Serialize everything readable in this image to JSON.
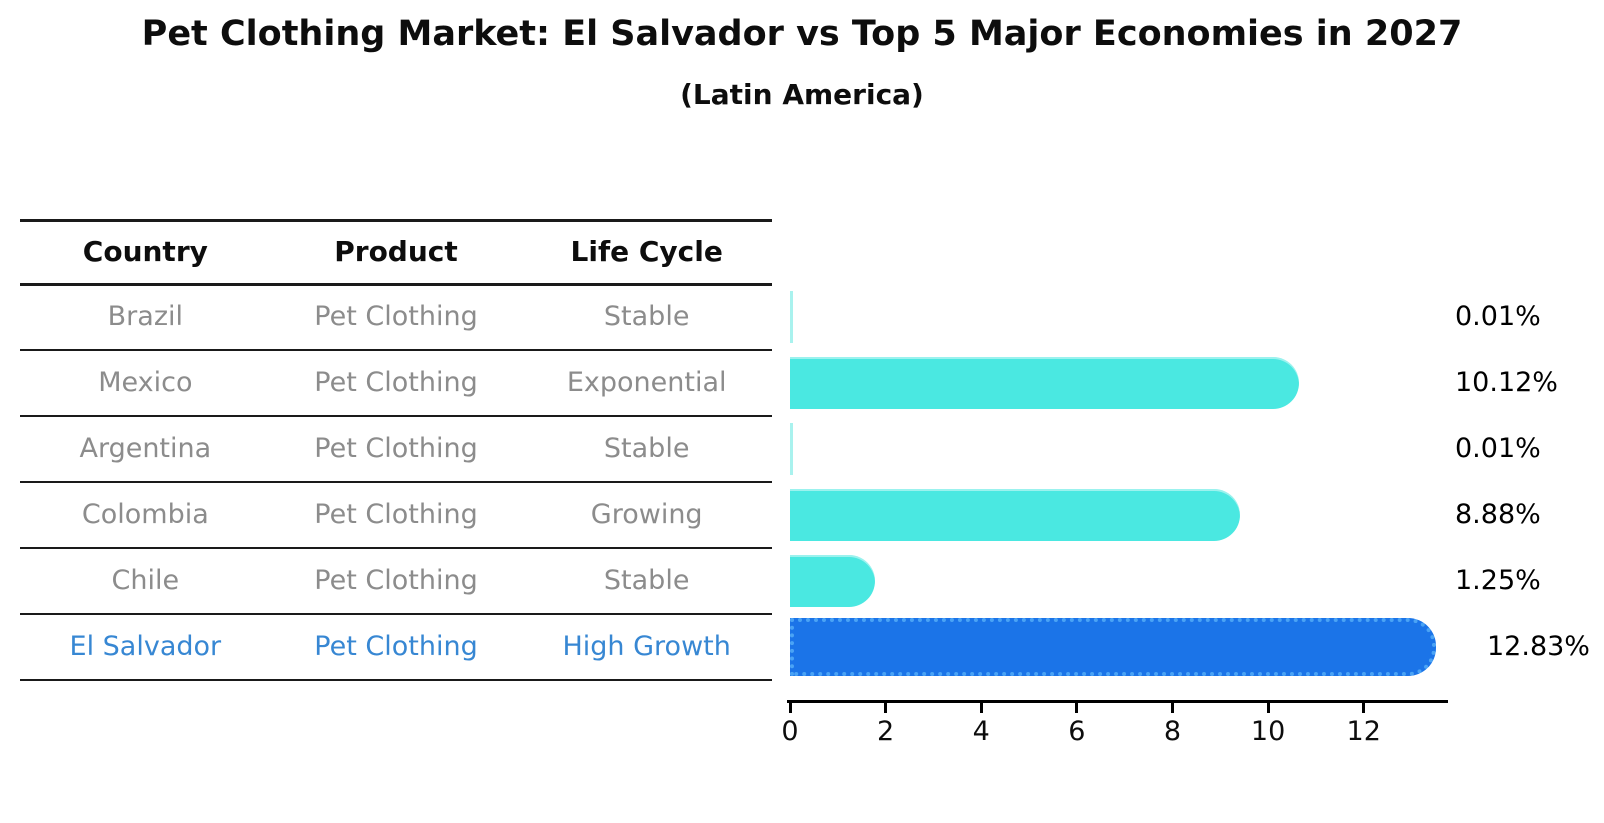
{
  "title": "Pet Clothing Market: El Salvador vs Top 5 Major Economies in 2027",
  "subtitle": "(Latin America)",
  "table": {
    "headers": {
      "country": "Country",
      "product": "Product",
      "life_cycle": "Life Cycle"
    },
    "rows": [
      {
        "country": "Brazil",
        "product": "Pet Clothing",
        "life_cycle": "Stable"
      },
      {
        "country": "Mexico",
        "product": "Pet Clothing",
        "life_cycle": "Exponential"
      },
      {
        "country": "Argentina",
        "product": "Pet Clothing",
        "life_cycle": "Stable"
      },
      {
        "country": "Colombia",
        "product": "Pet Clothing",
        "life_cycle": "Growing"
      },
      {
        "country": "Chile",
        "product": "Pet Clothing",
        "life_cycle": "Stable"
      },
      {
        "country": "El Salvador",
        "product": "Pet Clothing",
        "life_cycle": "High Growth"
      }
    ],
    "highlight_row": 5
  },
  "chart_data": {
    "type": "bar",
    "orientation": "horizontal",
    "title": "Pet Clothing Market: El Salvador vs Top 5 Major Economies in 2027",
    "subtitle": "(Latin America)",
    "categories": [
      "Brazil",
      "Mexico",
      "Argentina",
      "Colombia",
      "Chile",
      "El Salvador"
    ],
    "values": [
      0.01,
      10.12,
      0.01,
      8.88,
      1.25,
      12.83
    ],
    "value_labels": [
      "0.01%",
      "10.12%",
      "0.01%",
      "8.88%",
      "1.25%",
      "12.83%"
    ],
    "xticks": [
      "0",
      "2",
      "4",
      "6",
      "8",
      "10",
      "12"
    ],
    "xtick_values": [
      0,
      2,
      4,
      6,
      8,
      10,
      12
    ],
    "xlim": [
      0,
      13.7
    ],
    "grid": false,
    "legend": false,
    "highlight_index": 5,
    "bar_color": "#4ae8e1",
    "sliver_color": "#a9f2ee",
    "highlight_color": "#1b74e8",
    "highlight_edge_color": "#4aa3f5"
  },
  "colors": {
    "background": "#ffffff",
    "header_text": "#0d0d0d",
    "muted_text": "#8c8c8c",
    "highlight_text": "#3787d3",
    "axis": "#000000"
  }
}
